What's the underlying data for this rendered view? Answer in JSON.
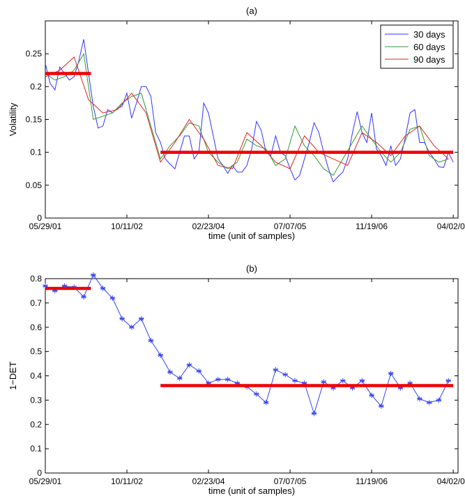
{
  "colors": {
    "series_30": "#3333ff",
    "series_60": "#339933",
    "series_90": "#dd2222",
    "regime": "#ee0000",
    "panel_b_line": "#3344ee"
  },
  "chart_data": [
    {
      "type": "line",
      "title": "(a)",
      "xlabel": "time (unit of samples)",
      "ylabel": "Volatility",
      "xlim": [
        0,
        86
      ],
      "ylim": [
        0,
        0.3
      ],
      "x_tick_positions": [
        0,
        17,
        34,
        51,
        68,
        85
      ],
      "x_tick_labels": [
        "05/29/01",
        "10/11/02",
        "02/23/04",
        "07/07/05",
        "11/19/06",
        "04/02/08"
      ],
      "y_ticks": [
        0,
        0.05,
        0.1,
        0.15,
        0.2,
        0.25
      ],
      "y_tick_labels": [
        "0",
        "0.05",
        "0.1",
        "0.15",
        "0.2",
        "0.25"
      ],
      "legend": {
        "placement": "top-right"
      },
      "series": [
        {
          "name": "30 days",
          "color_key": "series_30",
          "values": [
            0.235,
            0.205,
            0.195,
            0.23,
            0.22,
            0.21,
            0.215,
            0.24,
            0.272,
            0.22,
            0.17,
            0.137,
            0.14,
            0.165,
            0.16,
            0.167,
            0.17,
            0.19,
            0.152,
            0.175,
            0.2,
            0.2,
            0.185,
            0.13,
            0.115,
            0.09,
            0.082,
            0.075,
            0.1,
            0.125,
            0.125,
            0.09,
            0.1,
            0.175,
            0.16,
            0.125,
            0.09,
            0.08,
            0.068,
            0.08,
            0.07,
            0.07,
            0.08,
            0.105,
            0.147,
            0.133,
            0.1,
            0.095,
            0.125,
            0.1,
            0.095,
            0.075,
            0.058,
            0.065,
            0.09,
            0.115,
            0.145,
            0.13,
            0.1,
            0.075,
            0.055,
            0.063,
            0.07,
            0.09,
            0.13,
            0.162,
            0.13,
            0.115,
            0.16,
            0.105,
            0.095,
            0.08,
            0.11,
            0.08,
            0.09,
            0.122,
            0.16,
            0.165,
            0.115,
            0.115,
            0.1,
            0.09,
            0.078,
            0.077,
            0.1,
            0.085
          ]
        },
        {
          "name": "60 days",
          "color_key": "series_60",
          "x": [
            0,
            2,
            4,
            6,
            8,
            10,
            12,
            14,
            16,
            18,
            20,
            22,
            24,
            26,
            28,
            30,
            32,
            34,
            36,
            38,
            40,
            42,
            44,
            46,
            48,
            50,
            52,
            54,
            56,
            58,
            60,
            62,
            64,
            66,
            68,
            70,
            72,
            74,
            76,
            78,
            80,
            82,
            84
          ],
          "values": [
            0.22,
            0.21,
            0.215,
            0.225,
            0.25,
            0.15,
            0.155,
            0.16,
            0.175,
            0.185,
            0.19,
            0.14,
            0.09,
            0.11,
            0.125,
            0.145,
            0.14,
            0.1,
            0.085,
            0.075,
            0.085,
            0.12,
            0.11,
            0.105,
            0.08,
            0.09,
            0.14,
            0.11,
            0.095,
            0.075,
            0.065,
            0.09,
            0.115,
            0.14,
            0.12,
            0.1,
            0.085,
            0.1,
            0.135,
            0.14,
            0.095,
            0.085,
            0.09
          ]
        },
        {
          "name": "90 days",
          "color_key": "series_90",
          "x": [
            0,
            3,
            6,
            9,
            12,
            15,
            18,
            21,
            24,
            27,
            30,
            33,
            36,
            39,
            42,
            45,
            48,
            51,
            54,
            57,
            60,
            63,
            66,
            69,
            72,
            75,
            78,
            81,
            84
          ],
          "values": [
            0.215,
            0.225,
            0.245,
            0.18,
            0.16,
            0.165,
            0.19,
            0.16,
            0.085,
            0.115,
            0.15,
            0.12,
            0.08,
            0.075,
            0.13,
            0.11,
            0.085,
            0.075,
            0.125,
            0.1,
            0.09,
            0.08,
            0.13,
            0.115,
            0.095,
            0.125,
            0.14,
            0.11,
            0.09
          ]
        }
      ],
      "regime_lines": [
        {
          "x_start": 0,
          "x_end": 9.5,
          "y": 0.22
        },
        {
          "x_start": 24,
          "x_end": 85,
          "y": 0.1
        }
      ]
    },
    {
      "type": "line",
      "title": "(b)",
      "xlabel": "time (unit of samples)",
      "ylabel": "1−DET",
      "xlim": [
        0,
        86
      ],
      "ylim": [
        0,
        0.8
      ],
      "x_tick_positions": [
        0,
        17,
        34,
        51,
        68,
        85
      ],
      "x_tick_labels": [
        "05/29/01",
        "10/11/02",
        "02/23/04",
        "07/07/05",
        "11/19/06",
        "04/02/08"
      ],
      "y_ticks": [
        0,
        0.1,
        0.2,
        0.3,
        0.4,
        0.5,
        0.6,
        0.7,
        0.8
      ],
      "y_tick_labels": [
        "0",
        "0.1",
        "0.2",
        "0.3",
        "0.4",
        "0.5",
        "0.6",
        "0.7",
        "0.8"
      ],
      "series": [
        {
          "marker": "asterisk",
          "x": [
            0,
            2,
            4,
            6,
            8,
            10,
            12,
            14,
            16,
            18,
            20,
            22,
            24,
            26,
            28,
            30,
            32,
            34,
            36,
            38,
            40,
            42,
            44,
            46,
            48,
            50,
            52,
            54,
            56,
            58,
            60,
            62,
            64,
            66,
            68,
            70,
            72,
            74,
            76,
            78,
            80,
            82,
            84
          ],
          "values": [
            0.77,
            0.75,
            0.77,
            0.765,
            0.725,
            0.815,
            0.76,
            0.72,
            0.635,
            0.6,
            0.635,
            0.545,
            0.485,
            0.415,
            0.39,
            0.445,
            0.42,
            0.37,
            0.385,
            0.385,
            0.37,
            0.355,
            0.325,
            0.29,
            0.425,
            0.405,
            0.38,
            0.37,
            0.245,
            0.375,
            0.35,
            0.38,
            0.35,
            0.38,
            0.32,
            0.275,
            0.41,
            0.35,
            0.37,
            0.305,
            0.29,
            0.3,
            0.38
          ]
        }
      ],
      "regime_lines": [
        {
          "x_start": 0,
          "x_end": 9.5,
          "y": 0.76
        },
        {
          "x_start": 24,
          "x_end": 85,
          "y": 0.36
        }
      ]
    }
  ]
}
